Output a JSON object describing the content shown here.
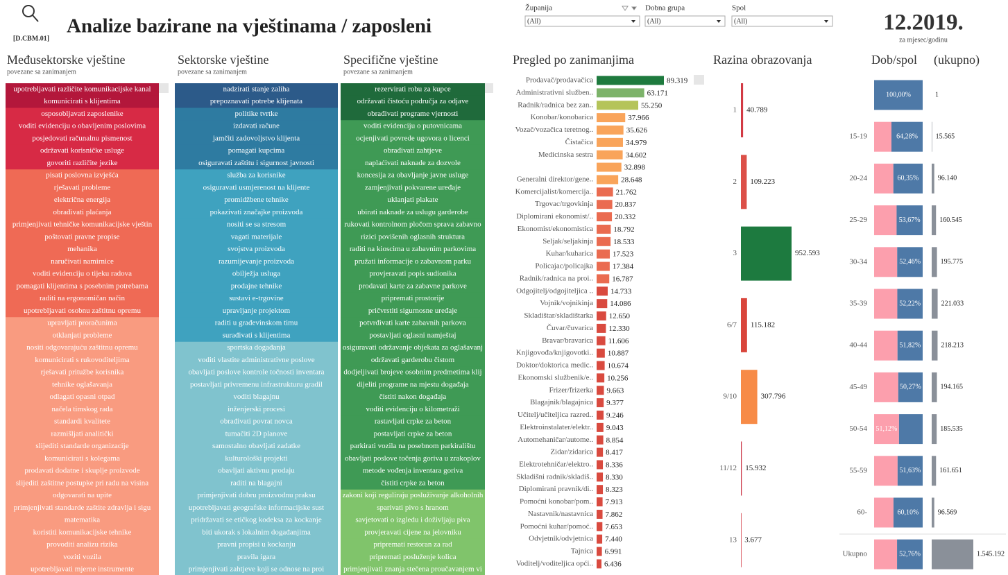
{
  "header": {
    "code": "[D.CBM.01]",
    "title": "Analize bazirane na vještinama / zaposleni",
    "date": "12.2019.",
    "date_caption": "za mjesec/godinu"
  },
  "filters": [
    {
      "label": "Županija",
      "value": "(All)"
    },
    {
      "label": "Dobna grupa",
      "value": "(All)"
    },
    {
      "label": "Spol",
      "value": "(All)"
    }
  ],
  "skills": [
    {
      "title": "Međusektorske vještine",
      "subtitle": "povezane sa zanimanjem",
      "groups": [
        {
          "color": "#b3173b",
          "items": [
            "upotrebljavati različite komunikacijske kanal",
            "komunicirati s klijentima"
          ]
        },
        {
          "color": "#d72a45",
          "items": [
            "osposobljavati zaposlenike",
            "voditi evidenciju o obavljenim poslovima",
            "posjedovati računalnu pismenost",
            "održavati korisničke usluge",
            "govoriti različite jezike"
          ]
        },
        {
          "color": "#ef6a55",
          "items": [
            "pisati poslovna izvješća",
            "rješavati probleme",
            "električna energija",
            "obrađivati plaćanja",
            "primjenjivati tehničke komunikacijske vještin",
            "poštovati pravne propise",
            "mehanika",
            "naručivati namirnice",
            "voditi evidenciju o tijeku radova",
            "pomagati klijentima s posebnim potrebama",
            "raditi na ergonomičan način",
            "upotrebljavati osobnu zaštitnu opremu"
          ]
        },
        {
          "color": "#f99b80",
          "items": [
            "upravljati proračunima",
            "otklanjati probleme",
            "nositi odgovarajuću zaštitnu opremu",
            "komunicirati s rukovoditeljima",
            "rješavati pritužbe korisnika",
            "tehnike oglašavanja",
            "odlagati opasni otpad",
            "načela timskog rada",
            "standardi kvalitete",
            "razmišljati analitički",
            "slijediti standarde organizacije",
            "komunicirati s kolegama",
            "prodavati dodatne i skuplje proizvode",
            "slijediti zaštitne postupke pri radu na visina",
            "odgovarati na upite",
            "primjenjivati standarde zaštite zdravlja i sigu",
            "matematika",
            "koristiti komunikacijske tehnike",
            "provoditi analizu rizika",
            "voziti vozila",
            "upotrebljavati mjerne instrumente"
          ]
        }
      ]
    },
    {
      "title": "Sektorske vještine",
      "subtitle": "povezane sa zanimanjem",
      "groups": [
        {
          "color": "#2c5a89",
          "items": [
            "nadzirati stanje zaliha",
            "prepoznavati potrebe klijenata"
          ]
        },
        {
          "color": "#2e7ba1",
          "items": [
            "politike tvrtke",
            "izdavati račune",
            "jamčiti zadovoljstvo klijenta",
            "pomagati kupcima",
            "osiguravati zaštitu i sigurnost javnosti"
          ]
        },
        {
          "color": "#3fa2bf",
          "items": [
            "služba za korisnike",
            "osiguravati usmjerenost na klijente",
            "promidžbene tehnike",
            "pokazivati značajke proizvoda",
            "nositi se sa stresom",
            "vagati materijale",
            "svojstva proizvoda",
            "razumijevanje proizvoda",
            "obilježja usluga",
            "prodajne tehnike",
            "sustavi e-trgovine",
            "upravljanje projektom",
            "raditi u građevinskom timu",
            "surađivati s klijentima"
          ]
        },
        {
          "color": "#80c3ce",
          "items": [
            "sportska događanja",
            "voditi vlastite administrativne poslove",
            "obavljati poslove kontrole točnosti inventara",
            "postavljati privremenu infrastrukturu gradil",
            "voditi blagajnu",
            "inženjerski procesi",
            "obrađivati povrat novca",
            "tumačiti 2D planove",
            "samostalno obavljati zadatke",
            "kulturološki projekti",
            "obavljati aktivnu prodaju",
            "raditi na blagajni",
            "primjenjivati dobru proizvodnu praksu",
            "upotrebljavati geografske informacijske sust",
            "pridržavati se etičkog kodeksa za kockanje",
            "biti ukorak s lokalnim događanjima",
            "pravni propisi u kockanju",
            "pravila igara",
            "primjenjivati zahtjeve koji se odnose na proi"
          ]
        }
      ]
    },
    {
      "title": "Specifične vještine",
      "subtitle": "povezane sa zanimanjem",
      "groups": [
        {
          "color": "#1f6a3b",
          "items": [
            "rezervirati robu za kupce",
            "održavati čistoću područja za odjave",
            "obrađivati programe vjernosti"
          ]
        },
        {
          "color": "#3f9a55",
          "items": [
            "voditi evidenciju o putovnicama",
            "ocjenjivati povrede ugovora o licenci",
            "obrađivati zahtjeve",
            "naplaćivati naknade za dozvole",
            "koncesija za obavljanje javne usluge",
            "zamjenjivati pokvarene uređaje",
            "uklanjati plakate",
            "ubirati naknade za uslugu garderobe",
            "rukovati kontrolnom pločom sprava zabavno",
            "rizici povišenih oglasnih struktura",
            "raditi na kioscima u zabavnim parkovima",
            "pružati informacije o zabavnom parku",
            "provjeravati popis sudionika",
            "prodavati karte za zabavne parkove",
            "pripremati prostorije",
            "pričvrstiti sigurnosne uređaje",
            "potvrđivati karte zabavnih parkova",
            "postavljati oglasni namještaj",
            "osiguravati održavanje objekata za oglašavanj",
            "održavati garderobu čistom",
            "dodjeljivati brojeve osobnim predmetima klij",
            "dijeliti programe na mjestu događaja",
            "čistiti nakon događaja",
            "voditi evidenciju o kilometraži",
            "rastavljati crpke za beton",
            "postavljati crpke za beton",
            "parkirati vozila na posebnom parkiralištu",
            "obavljati poslove točenja goriva u zrakoplov",
            "metode vođenja inventara goriva",
            "čistiti crpke za beton"
          ]
        },
        {
          "color": "#80c46b",
          "items": [
            "zakoni koji reguliraju posluživanje alkoholnih",
            "sparivati pivo s hranom",
            "savjetovati o izgledu i doživljaju piva",
            "provjeravati cijene na jelovniku",
            "pripremati restoran za rad",
            "pripremati posluženje kolica",
            "primjenjivati znanja stečena proučavanjem vi"
          ]
        }
      ]
    }
  ],
  "occupations": {
    "type": "bar",
    "title": "Pregled po zanimanjima",
    "categories": [
      "Prodavač/prodavačica",
      "Administrativni služben..",
      "Radnik/radnica bez zan..",
      "Konobar/konobarica",
      "Vozač/vozačica teretnog..",
      "Čistačica",
      "Medicinska sestra",
      null,
      "Generalni direktor/gene..",
      "Komercijalist/komercija..",
      "Trgovac/trgovkinja",
      "Diplomirani ekonomist/..",
      "Ekonomist/ekonomistica",
      "Seljak/seljakinja",
      "Kuhar/kuharica",
      "Policajac/policajka",
      "Radnik/radnica na proi..",
      "Odgojitelj/odgojiteljica ..",
      "Vojnik/vojnikinja",
      "Skladištar/skladištarka",
      "Čuvar/čuvarica",
      "Bravar/bravarica",
      "Knjigovođa/knjigovotki..",
      "Doktor/doktorica medic..",
      "Ekonomski službenik/e..",
      "Frizer/frizerka",
      "Blagajnik/blagajnica",
      "Učitelj/učiteljica razred..",
      "Elektroinstalater/elektr..",
      "Automehaničar/autome..",
      "Zidar/zidarica",
      "Elektrotehničar/elektro..",
      "Skladišni radnik/skladiš..",
      "Diplomirani pravnik/di..",
      "Pomoćni konobar/pom..",
      "Nastavnik/nastavnica",
      "Pomoćni kuhar/pomoć..",
      "Odvjetnik/odvjetnica",
      "Tajnica",
      "Voditelj/voditeljica opći.."
    ],
    "values": [
      89319,
      63171,
      55250,
      37966,
      35626,
      34979,
      34602,
      32898,
      28648,
      21762,
      20837,
      20332,
      18792,
      18533,
      17523,
      17384,
      16787,
      14733,
      14086,
      12650,
      12330,
      11606,
      10887,
      10674,
      10256,
      9663,
      9377,
      9246,
      9043,
      8854,
      8417,
      8336,
      8330,
      8323,
      7913,
      7862,
      7653,
      7440,
      6991,
      6436
    ],
    "value_labels": [
      "89.319",
      "63.171",
      "55.250",
      "37.966",
      "35.626",
      "34.979",
      "34.602",
      "32.898",
      "28.648",
      "21.762",
      "20.837",
      "20.332",
      "18.792",
      "18.533",
      "17.523",
      "17.384",
      "16.787",
      "14.733",
      "14.086",
      "12.650",
      "12.330",
      "11.606",
      "10.887",
      "10.674",
      "10.256",
      "9.663",
      "9.377",
      "9.246",
      "9.043",
      "8.854",
      "8.417",
      "8.336",
      "8.330",
      "8.323",
      "7.913",
      "7.862",
      "7.653",
      "7.440",
      "6.991",
      "6.436"
    ],
    "colors": [
      "#1e7a3e",
      "#7db36a",
      "#b5c45a",
      "#f9a45a",
      "#f9a45a",
      "#f9a45a",
      "#f9a45a",
      "#f9a45a",
      "#f9a45a",
      "#ea6b50",
      "#ea6b50",
      "#ea6b50",
      "#ea6b50",
      "#ea6b50",
      "#ea6b50",
      "#ea6b50",
      "#ea6b50",
      "#d94a3f",
      "#d94a3f",
      "#d94a3f",
      "#d94a3f",
      "#d94a3f",
      "#d94a3f",
      "#d94a3f",
      "#d94a3f",
      "#d94a3f",
      "#d94a3f",
      "#d94a3f",
      "#d94a3f",
      "#d94a3f",
      "#d94a3f",
      "#d94a3f",
      "#d94a3f",
      "#d94a3f",
      "#d94a3f",
      "#d94a3f",
      "#d94a3f",
      "#d94a3f",
      "#d94a3f",
      "#d94a3f"
    ]
  },
  "education": {
    "type": "bar",
    "title": "Razina obrazovanja",
    "categories": [
      "1",
      "2",
      "3",
      "6/7",
      "9/10",
      "11/12",
      "13"
    ],
    "values": [
      40789,
      109223,
      952593,
      115182,
      307796,
      15932,
      3677
    ],
    "value_labels": [
      "40.789",
      "109.223",
      "952.593",
      "115.182",
      "307.796",
      "15.932",
      "3.677"
    ],
    "colors": [
      "#d23a44",
      "#dc5048",
      "#1d7a3f",
      "#d9463c",
      "#f78b47",
      "#c93040",
      "#d23a44"
    ]
  },
  "age_sex": {
    "type": "bar",
    "title": "Dob/spol",
    "title2": "(ukupno)",
    "colors": [
      "#fc9fad",
      "#4e79a7"
    ],
    "total_color": "#8a9099",
    "categories": [
      null,
      "15-19",
      "20-24",
      "25-29",
      "30-34",
      "35-39",
      "40-44",
      "45-49",
      "50-54",
      "55-59",
      "60-",
      "Ukupno"
    ],
    "pct": [
      100,
      64.28,
      60.35,
      53.67,
      52.46,
      52.22,
      51.82,
      50.27,
      51.12,
      51.63,
      60.1,
      52.76
    ],
    "pct_labels": [
      "100,00%",
      "64,28%",
      "60,35%",
      "53,67%",
      "52,46%",
      "52,22%",
      "51,82%",
      "50,27%",
      "51,12%",
      "51,63%",
      "60,10%",
      "52,76%"
    ],
    "pct_colors": [
      "#4e79a7",
      "#4e79a7",
      "#4e79a7",
      "#4e79a7",
      "#4e79a7",
      "#4e79a7",
      "#4e79a7",
      "#4e79a7",
      "#fc9fad",
      "#4e79a7",
      "#4e79a7",
      "#4e79a7"
    ],
    "totals": [
      1,
      15565,
      96140,
      160545,
      195775,
      221033,
      218213,
      194165,
      185535,
      161651,
      96569,
      1545192
    ],
    "total_labels": [
      "1",
      "15.565",
      "96.140",
      "160.545",
      "195.775",
      "221.033",
      "218.213",
      "194.165",
      "185.535",
      "161.651",
      "96.569",
      "1.545.192"
    ]
  }
}
